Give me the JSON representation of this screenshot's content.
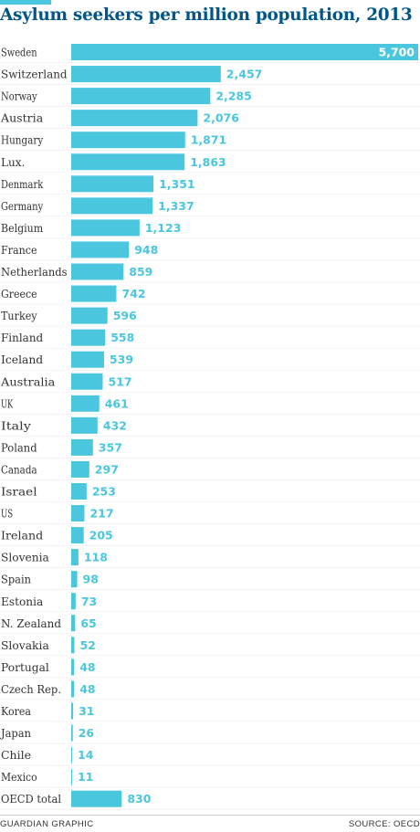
{
  "chart_data": {
    "type": "bar",
    "orientation": "horizontal",
    "title": "Asylum seekers per million population, 2013",
    "categories": [
      "Sweden",
      "Switzerland",
      "Norway",
      "Austria",
      "Hungary",
      "Lux.",
      "Denmark",
      "Germany",
      "Belgium",
      "France",
      "Netherlands",
      "Greece",
      "Turkey",
      "Finland",
      "Iceland",
      "Australia",
      "UK",
      "Italy",
      "Poland",
      "Canada",
      "Israel",
      "US",
      "Ireland",
      "Slovenia",
      "Spain",
      "Estonia",
      "N. Zealand",
      "Slovakia",
      "Portugal",
      "Czech Rep.",
      "Korea",
      "Japan",
      "Chile",
      "Mexico",
      "OECD total"
    ],
    "values": [
      5700,
      2457,
      2285,
      2076,
      1871,
      1863,
      1351,
      1337,
      1123,
      948,
      859,
      742,
      596,
      558,
      539,
      517,
      461,
      432,
      357,
      297,
      253,
      217,
      205,
      118,
      98,
      73,
      65,
      52,
      48,
      48,
      31,
      26,
      14,
      11,
      830
    ],
    "value_labels": [
      "5,700",
      "2,457",
      "2,285",
      "2,076",
      "1,871",
      "1,863",
      "1,351",
      "1,337",
      "1,123",
      "948",
      "859",
      "742",
      "596",
      "558",
      "539",
      "517",
      "461",
      "432",
      "357",
      "297",
      "253",
      "217",
      "205",
      "118",
      "98",
      "73",
      "65",
      "52",
      "48",
      "48",
      "31",
      "26",
      "14",
      "11",
      "830"
    ],
    "xlim": [
      0,
      5700
    ],
    "grid": false,
    "legend": "none",
    "bar_color": "#4bc6df",
    "value_label_color": "#4bc6df",
    "inside_label_color": "#ffffff"
  },
  "footer": {
    "credit": "GUARDIAN GRAPHIC",
    "source": "SOURCE: OECD"
  }
}
